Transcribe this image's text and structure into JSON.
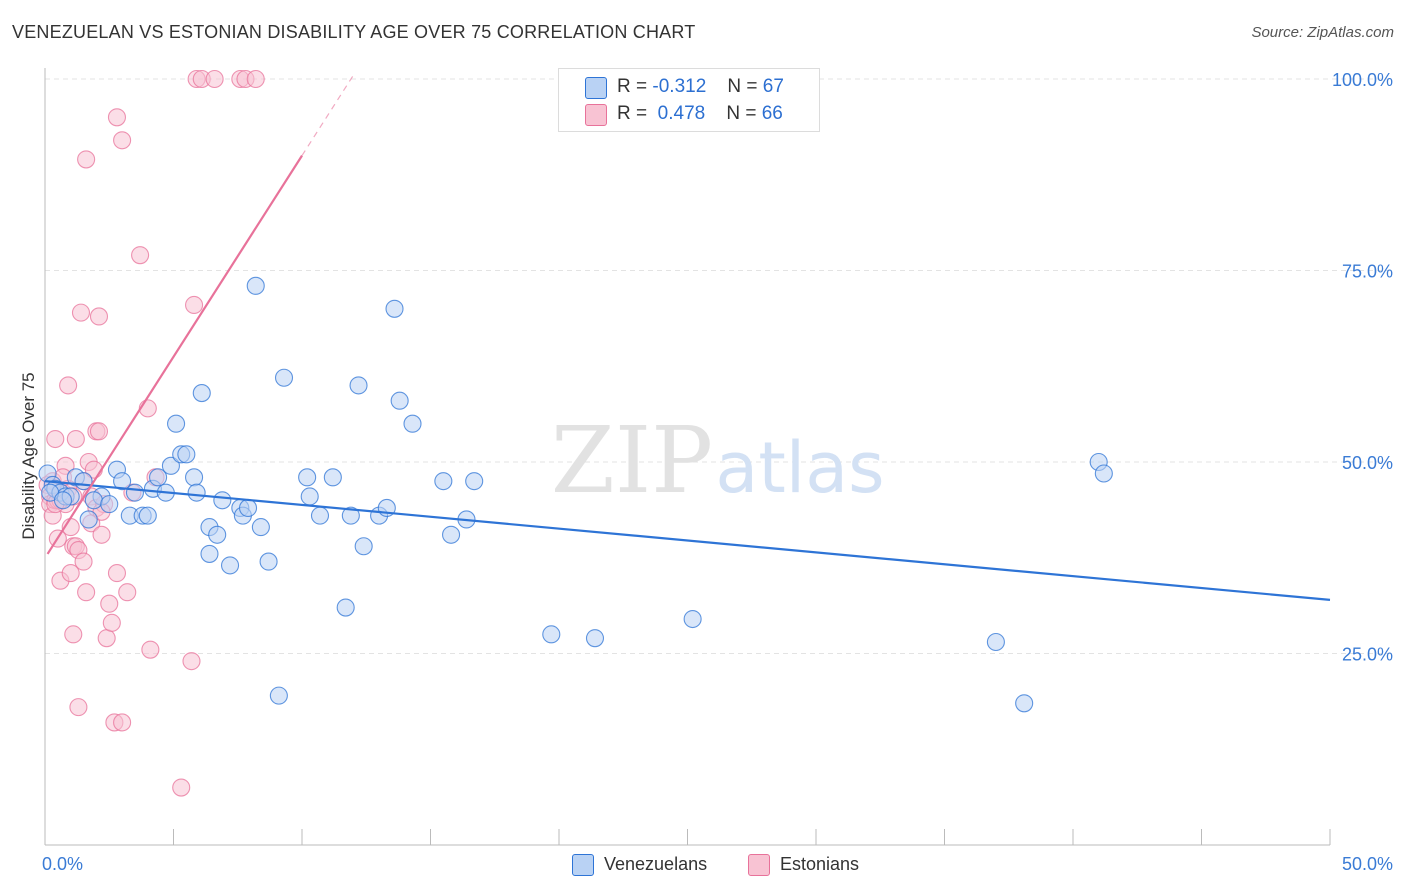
{
  "title": "VENEZUELAN VS ESTONIAN DISABILITY AGE OVER 75 CORRELATION CHART",
  "source": "Source: ZipAtlas.com",
  "watermark": {
    "zip": "ZIP",
    "atlas": "atlas"
  },
  "colors": {
    "blue": "#2e74d6",
    "blue_fill": "#b9d2f4",
    "pink": "#e8729a",
    "pink_fill": "#f8c3d3",
    "tick_label": "#3a7bd5",
    "grid": "#e3e3e3"
  },
  "legend": {
    "r_label": "R =",
    "n_label": "N =",
    "rows": [
      {
        "series": "Venezuelans",
        "r": "-0.312",
        "n": "67"
      },
      {
        "series": "Estonians",
        "r": "0.478",
        "n": "66"
      }
    ]
  },
  "chart_data": {
    "type": "scatter",
    "title": "VENEZUELAN VS ESTONIAN DISABILITY AGE OVER 75 CORRELATION CHART",
    "xlabel": "",
    "ylabel": "Disability Age Over 75",
    "xlim": [
      0,
      50
    ],
    "ylim": [
      0,
      105
    ],
    "x_tick_labels": [
      {
        "value": 0,
        "label": "0.0%"
      },
      {
        "value": 50,
        "label": "50.0%"
      }
    ],
    "y_tick_labels": [
      {
        "value": 25,
        "label": "25.0%"
      },
      {
        "value": 50,
        "label": "50.0%"
      },
      {
        "value": 75,
        "label": "75.0%"
      },
      {
        "value": 100,
        "label": "100.0%"
      }
    ],
    "grid": true,
    "legend_position": "bottom-center",
    "series": [
      {
        "name": "Venezuelans",
        "r": -0.312,
        "n": 67,
        "trend": {
          "x0": 0,
          "y0": 47.5,
          "x1": 50,
          "y1": 32.0
        },
        "points": [
          [
            0.1,
            48.5
          ],
          [
            0.3,
            47.0
          ],
          [
            0.4,
            46.5
          ],
          [
            0.6,
            46.0
          ],
          [
            0.8,
            45.5
          ],
          [
            1.0,
            45.5
          ],
          [
            1.2,
            48.0
          ],
          [
            1.5,
            47.5
          ],
          [
            1.7,
            42.5
          ],
          [
            2.2,
            45.5
          ],
          [
            2.8,
            49.0
          ],
          [
            3.0,
            47.5
          ],
          [
            3.3,
            43.0
          ],
          [
            3.5,
            46.0
          ],
          [
            3.8,
            43.0
          ],
          [
            4.0,
            43.0
          ],
          [
            4.2,
            46.5
          ],
          [
            4.4,
            48.0
          ],
          [
            4.7,
            46.0
          ],
          [
            4.9,
            49.5
          ],
          [
            5.1,
            55.0
          ],
          [
            5.3,
            51.0
          ],
          [
            5.5,
            51.0
          ],
          [
            5.8,
            48.0
          ],
          [
            5.9,
            46.0
          ],
          [
            6.1,
            59.0
          ],
          [
            6.4,
            38.0
          ],
          [
            6.4,
            41.5
          ],
          [
            6.7,
            40.5
          ],
          [
            6.9,
            45.0
          ],
          [
            7.2,
            36.5
          ],
          [
            7.6,
            44.0
          ],
          [
            7.7,
            43.0
          ],
          [
            7.9,
            44.0
          ],
          [
            8.2,
            73.0
          ],
          [
            8.4,
            41.5
          ],
          [
            8.7,
            37.0
          ],
          [
            9.1,
            19.5
          ],
          [
            9.3,
            61.0
          ],
          [
            10.2,
            48.0
          ],
          [
            10.3,
            45.5
          ],
          [
            10.7,
            43.0
          ],
          [
            11.2,
            48.0
          ],
          [
            11.7,
            31.0
          ],
          [
            11.9,
            43.0
          ],
          [
            12.2,
            60.0
          ],
          [
            12.4,
            39.0
          ],
          [
            13.0,
            43.0
          ],
          [
            13.3,
            44.0
          ],
          [
            13.6,
            70.0
          ],
          [
            13.8,
            58.0
          ],
          [
            14.3,
            55.0
          ],
          [
            15.5,
            47.5
          ],
          [
            15.8,
            40.5
          ],
          [
            16.4,
            42.5
          ],
          [
            16.7,
            47.5
          ],
          [
            19.7,
            27.5
          ],
          [
            21.4,
            27.0
          ],
          [
            25.2,
            29.5
          ],
          [
            37.0,
            26.5
          ],
          [
            38.1,
            18.5
          ],
          [
            41.0,
            50.0
          ],
          [
            41.2,
            48.5
          ],
          [
            0.2,
            46.0
          ],
          [
            0.7,
            45.0
          ],
          [
            1.9,
            45.0
          ],
          [
            2.5,
            44.5
          ]
        ]
      },
      {
        "name": "Estonians",
        "r": 0.478,
        "n": 66,
        "trend": {
          "x0": 0.1,
          "y0": 38.0,
          "x1": 10,
          "y1": 90.0
        },
        "trend_dashed": {
          "x0": 10,
          "y0": 90.0,
          "x1": 12.0,
          "y1": 100.5
        },
        "points": [
          [
            0.1,
            47.0
          ],
          [
            0.2,
            45.5
          ],
          [
            0.2,
            44.5
          ],
          [
            0.3,
            43.0
          ],
          [
            0.4,
            53.0
          ],
          [
            0.4,
            45.0
          ],
          [
            0.5,
            45.0
          ],
          [
            0.5,
            40.0
          ],
          [
            0.6,
            34.5
          ],
          [
            0.7,
            46.0
          ],
          [
            0.8,
            49.5
          ],
          [
            0.8,
            44.5
          ],
          [
            0.9,
            60.0
          ],
          [
            1.0,
            41.5
          ],
          [
            1.0,
            35.5
          ],
          [
            1.1,
            39.0
          ],
          [
            1.1,
            27.5
          ],
          [
            1.2,
            53.0
          ],
          [
            1.2,
            39.0
          ],
          [
            1.3,
            18.0
          ],
          [
            1.4,
            69.5
          ],
          [
            1.5,
            47.5
          ],
          [
            1.6,
            89.5
          ],
          [
            1.6,
            33.0
          ],
          [
            1.7,
            50.0
          ],
          [
            1.8,
            42.0
          ],
          [
            1.8,
            45.5
          ],
          [
            2.0,
            54.0
          ],
          [
            2.0,
            44.0
          ],
          [
            2.1,
            69.0
          ],
          [
            2.1,
            54.0
          ],
          [
            2.2,
            40.5
          ],
          [
            2.3,
            44.5
          ],
          [
            2.4,
            27.0
          ],
          [
            2.5,
            31.5
          ],
          [
            2.6,
            29.0
          ],
          [
            2.7,
            16.0
          ],
          [
            2.8,
            35.5
          ],
          [
            2.8,
            95.0
          ],
          [
            3.0,
            92.0
          ],
          [
            3.0,
            16.0
          ],
          [
            3.2,
            33.0
          ],
          [
            3.4,
            46.0
          ],
          [
            3.7,
            77.0
          ],
          [
            4.0,
            57.0
          ],
          [
            4.1,
            25.5
          ],
          [
            4.3,
            48.0
          ],
          [
            5.3,
            7.5
          ],
          [
            5.7,
            24.0
          ],
          [
            5.8,
            70.5
          ],
          [
            5.9,
            100.0
          ],
          [
            6.1,
            100.0
          ],
          [
            6.6,
            100.0
          ],
          [
            7.6,
            100.0
          ],
          [
            7.8,
            100.0
          ],
          [
            8.2,
            100.0
          ],
          [
            0.3,
            47.5
          ],
          [
            0.6,
            45.0
          ],
          [
            0.9,
            46.5
          ],
          [
            1.3,
            38.5
          ],
          [
            1.5,
            37.0
          ],
          [
            2.2,
            43.5
          ],
          [
            0.4,
            44.5
          ],
          [
            1.9,
            49.0
          ],
          [
            0.7,
            48.0
          ],
          [
            1.1,
            45.5
          ]
        ]
      }
    ]
  }
}
